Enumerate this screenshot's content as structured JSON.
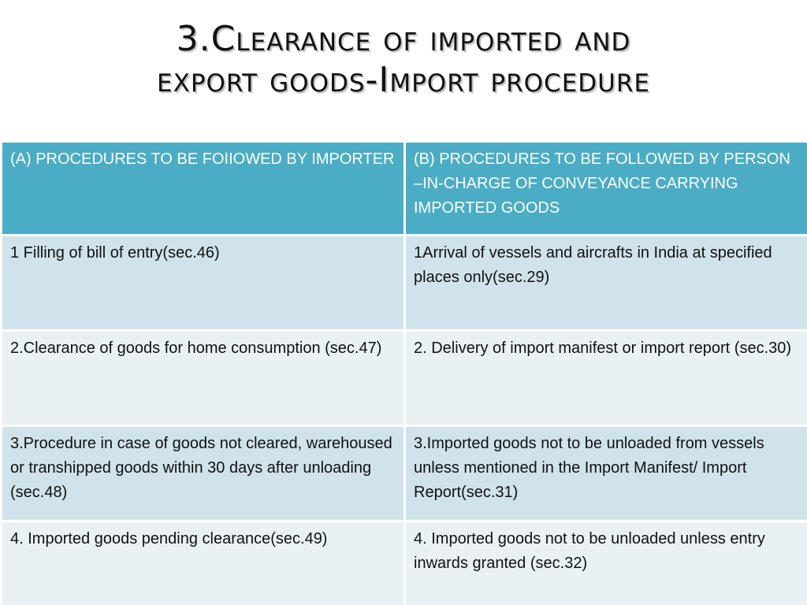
{
  "slide": {
    "title_line1": "3.Clearance of imported and",
    "title_line2": "export goods-Import procedure"
  },
  "table": {
    "headers": [
      "(A) PROCEDURES TO BE FOIIOWED BY IMPORTER",
      "(B) PROCEDURES TO BE FOLLOWED BY PERSON –IN-CHARGE OF CONVEYANCE CARRYING IMPORTED GOODS"
    ],
    "rows": [
      [
        "1 Filling of bill of entry(sec.46)",
        "1Arrival of vessels and aircrafts in India at specified places only(sec.29)"
      ],
      [
        "2.Clearance of goods for home consumption (sec.47)",
        "2. Delivery of import manifest or import report (sec.30)"
      ],
      [
        "3.Procedure in case of goods not cleared, warehoused or transhipped goods within 30 days  after unloading (sec.48)",
        "3.Imported goods not to be unloaded from vessels unless mentioned in the Import Manifest/ Import Report(sec.31)"
      ],
      [
        "4. Imported goods pending clearance(sec.49)",
        "4. Imported goods not to be  unloaded unless entry inwards granted (sec.32)"
      ]
    ]
  },
  "colors": {
    "header_bg": "#4bacc6",
    "row_odd_bg": "#d0e3ea",
    "row_even_bg": "#e9f1f5"
  }
}
